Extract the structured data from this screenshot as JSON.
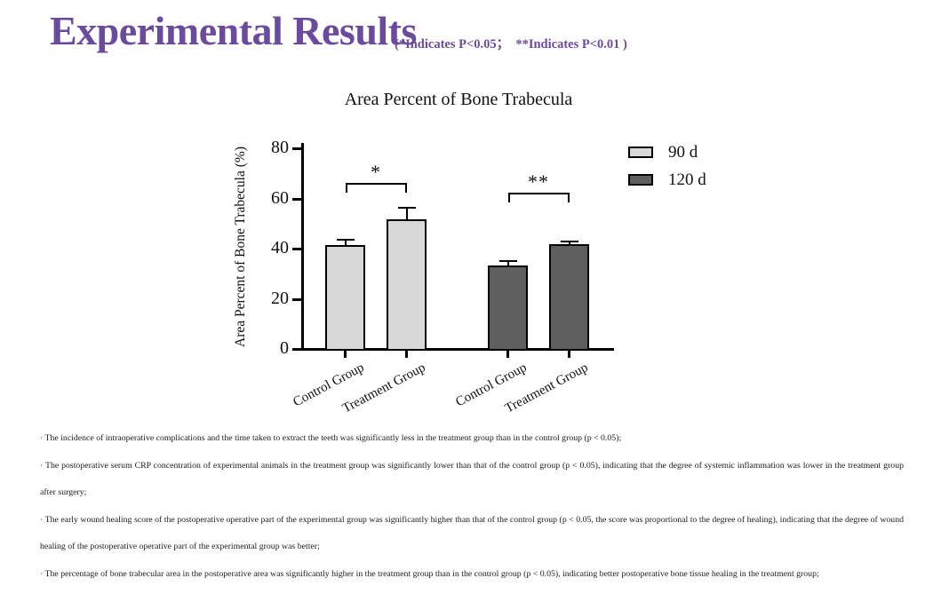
{
  "slide": {
    "title": "Experimental Results",
    "subtitle": "(*Indicates P<0.05；  **Indicates P<0.01 )",
    "title_color": "#6b4b9d"
  },
  "chart_data": {
    "type": "bar",
    "title": "Area Percent of Bone Trabecula",
    "xlabel": "",
    "ylabel": "Area Percent of Bone Trabecula (%)",
    "ylim": [
      0,
      80
    ],
    "yticks": [
      0,
      20,
      40,
      60,
      80
    ],
    "grid": false,
    "legend_position": "right",
    "categories": [
      "Control Group",
      "Treatment Group",
      "Control Group",
      "Treatment Group"
    ],
    "bars": [
      {
        "category": "Control Group",
        "series": "90 d",
        "value": 41,
        "error": 2.5
      },
      {
        "category": "Treatment Group",
        "series": "90 d",
        "value": 51.5,
        "error": 5
      },
      {
        "category": "Control Group",
        "series": "120 d",
        "value": 33,
        "error": 2
      },
      {
        "category": "Treatment Group",
        "series": "120 d",
        "value": 41.5,
        "error": 1.5
      }
    ],
    "legend": [
      {
        "label": "90 d",
        "color": "#d8d8d8"
      },
      {
        "label": "120 d",
        "color": "#5f5f5f"
      }
    ],
    "significance": [
      {
        "label": "*",
        "from": 0,
        "to": 1,
        "height": 66
      },
      {
        "label": "**",
        "from": 2,
        "to": 3,
        "height": 62
      }
    ]
  },
  "notes": {
    "items": [
      "· The incidence of intraoperative complications and the time taken to extract the teeth was significantly less in the treatment group than in the control group (p < 0.05);",
      "· The postoperative serum CRP concentration of experimental animals in the treatment group was significantly lower than that of the control group (p < 0.05), indicating that the degree of systemic inflammation was lower in the treatment group after surgery;",
      "· The early wound healing score of the postoperative operative part of the experimental group was significantly higher than that of the control group (p < 0.05, the score was proportional to the degree of healing), indicating that the degree of wound healing of the postoperative operative part of the experimental group was better;",
      "· The percentage of bone trabecular area in the postoperative area was significantly higher in the treatment group than in the control group (p < 0.05), indicating better postoperative bone tissue healing in the treatment group;"
    ]
  }
}
